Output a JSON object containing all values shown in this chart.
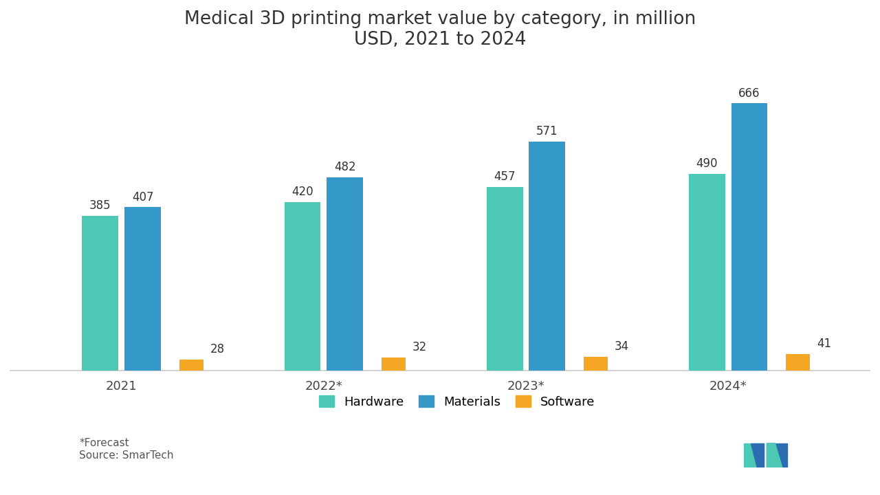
{
  "title": "Medical 3D printing market value by category, in million\nUSD, 2021 to 2024",
  "categories": [
    "2021",
    "2022*",
    "2023*",
    "2024*"
  ],
  "series": {
    "Hardware": [
      385,
      420,
      457,
      490
    ],
    "Materials": [
      407,
      482,
      571,
      666
    ],
    "Software": [
      28,
      32,
      34,
      41
    ]
  },
  "colors": {
    "Hardware": "#4DC8B4",
    "Materials": "#3498C8",
    "Software": "#F5A623"
  },
  "bar_width": 0.18,
  "software_bar_width": 0.12,
  "ylim": [
    0,
    760
  ],
  "title_fontsize": 19,
  "tick_fontsize": 13,
  "legend_fontsize": 13,
  "annotation_fontsize": 12,
  "footnote": "*Forecast\nSource: SmarTech",
  "background_color": "#FFFFFF"
}
